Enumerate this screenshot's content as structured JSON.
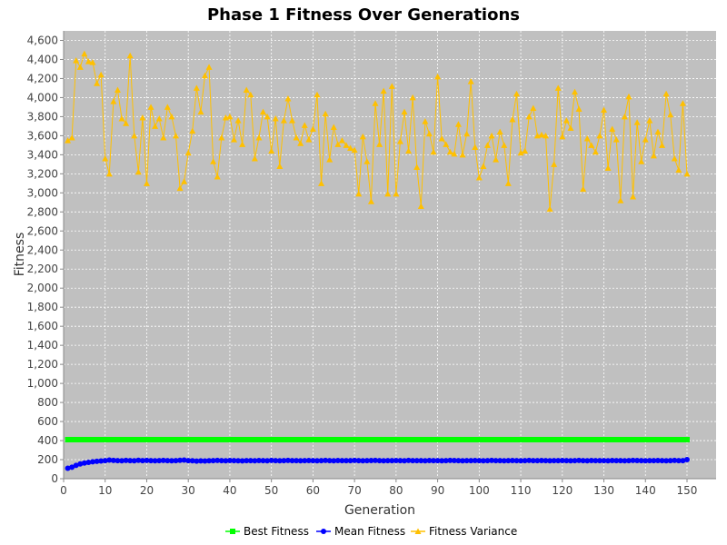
{
  "chart_data": {
    "type": "line",
    "title": "Phase 1 Fitness Over Generations",
    "xlabel": "Generation",
    "ylabel": "Fitness",
    "xlim": [
      0,
      157
    ],
    "ylim": [
      0,
      4700
    ],
    "xticks": [
      0,
      10,
      20,
      30,
      40,
      50,
      60,
      70,
      80,
      90,
      100,
      110,
      120,
      130,
      140,
      150
    ],
    "yticks": [
      0,
      200,
      400,
      600,
      800,
      1000,
      1200,
      1400,
      1600,
      1800,
      2000,
      2200,
      2400,
      2600,
      2800,
      3000,
      3200,
      3400,
      3600,
      3800,
      4000,
      4200,
      4400,
      4600
    ],
    "grid": true,
    "legend_position": "bottom",
    "series": [
      {
        "name": "Best Fitness",
        "color": "#00ff00",
        "marker": "square",
        "values": [
          410,
          410,
          410,
          410,
          410,
          410,
          410,
          410,
          410,
          410,
          410,
          410,
          410,
          410,
          410,
          410,
          410,
          410,
          410,
          410,
          410,
          410,
          410,
          410,
          410,
          410,
          410,
          410,
          410,
          410,
          410,
          410,
          410,
          410,
          410,
          410,
          410,
          410,
          410,
          410,
          410,
          410,
          410,
          410,
          410,
          410,
          410,
          410,
          410,
          410,
          410,
          410,
          410,
          410,
          410,
          410,
          410,
          410,
          410,
          410,
          410,
          410,
          410,
          410,
          410,
          410,
          410,
          410,
          410,
          410,
          410,
          410,
          410,
          410,
          410,
          410,
          410,
          410,
          410,
          410,
          410,
          410,
          410,
          410,
          410,
          410,
          410,
          410,
          410,
          410,
          410,
          410,
          410,
          410,
          410,
          410,
          410,
          410,
          410,
          410,
          410,
          410,
          410,
          410,
          410,
          410,
          410,
          410,
          410,
          410,
          410,
          410,
          410,
          410,
          410,
          410,
          410,
          410,
          410,
          410,
          410,
          410,
          410,
          410,
          410,
          410,
          410,
          410,
          410,
          410,
          410,
          410,
          410,
          410,
          410,
          410,
          410,
          410,
          410,
          410,
          410,
          410,
          410,
          410,
          410,
          410,
          410,
          410,
          410,
          410
        ]
      },
      {
        "name": "Mean Fitness",
        "color": "#0000ff",
        "marker": "circle",
        "values": [
          110,
          120,
          140,
          155,
          165,
          172,
          178,
          182,
          186,
          190,
          195,
          192,
          190,
          188,
          192,
          190,
          188,
          193,
          190,
          192,
          190,
          188,
          190,
          192,
          190,
          188,
          190,
          193,
          195,
          190,
          188,
          185,
          187,
          186,
          188,
          190,
          192,
          190,
          188,
          191,
          190,
          188,
          187,
          190,
          189,
          188,
          191,
          190,
          188,
          192,
          190,
          188,
          190,
          192,
          190,
          189,
          188,
          190,
          191,
          190,
          188,
          190,
          192,
          190,
          188,
          191,
          190,
          189,
          190,
          192,
          190,
          188,
          190,
          191,
          192,
          190,
          188,
          190,
          189,
          191,
          190,
          188,
          192,
          190,
          189,
          190,
          188,
          191,
          190,
          189,
          188,
          190,
          192,
          191,
          190,
          188,
          190,
          189,
          191,
          190,
          188,
          190,
          192,
          190,
          189,
          188,
          190,
          191,
          190,
          188,
          190,
          192,
          190,
          189,
          191,
          190,
          188,
          190,
          189,
          191,
          190,
          188,
          190,
          192,
          190,
          188,
          191,
          190,
          189,
          190,
          188,
          191,
          190,
          189,
          188,
          190,
          192,
          191,
          190,
          188,
          190,
          189,
          191,
          190,
          188,
          190,
          192,
          190,
          189,
          200
        ]
      },
      {
        "name": "Fitness Variance",
        "color": "#ffc000",
        "marker": "triangle",
        "values": [
          3550,
          3580,
          4390,
          4320,
          4460,
          4380,
          4370,
          4150,
          4240,
          3360,
          3200,
          3960,
          4080,
          3780,
          3730,
          4440,
          3600,
          3220,
          3790,
          3100,
          3900,
          3700,
          3780,
          3580,
          3900,
          3800,
          3600,
          3050,
          3120,
          3420,
          3650,
          4100,
          3850,
          4230,
          4320,
          3330,
          3170,
          3580,
          3790,
          3800,
          3560,
          3760,
          3510,
          4080,
          4030,
          3360,
          3580,
          3850,
          3800,
          3440,
          3780,
          3280,
          3760,
          3990,
          3760,
          3580,
          3520,
          3710,
          3560,
          3670,
          4030,
          3100,
          3830,
          3350,
          3690,
          3510,
          3550,
          3500,
          3470,
          3450,
          2990,
          3590,
          3330,
          2910,
          3940,
          3510,
          4070,
          2990,
          4120,
          2990,
          3540,
          3850,
          3440,
          4000,
          3270,
          2860,
          3750,
          3620,
          3430,
          4220,
          3570,
          3510,
          3430,
          3410,
          3720,
          3400,
          3620,
          4170,
          3480,
          3160,
          3280,
          3500,
          3600,
          3350,
          3640,
          3500,
          3100,
          3770,
          4040,
          3420,
          3440,
          3800,
          3890,
          3600,
          3610,
          3600,
          2830,
          3300,
          4100,
          3590,
          3760,
          3680,
          4060,
          3880,
          3040,
          3570,
          3500,
          3430,
          3600,
          3870,
          3260,
          3670,
          3560,
          2920,
          3800,
          4010,
          2960,
          3740,
          3330,
          3560,
          3760,
          3390,
          3640,
          3500,
          4040,
          3820,
          3360,
          3240,
          3940,
          3200
        ]
      }
    ]
  }
}
